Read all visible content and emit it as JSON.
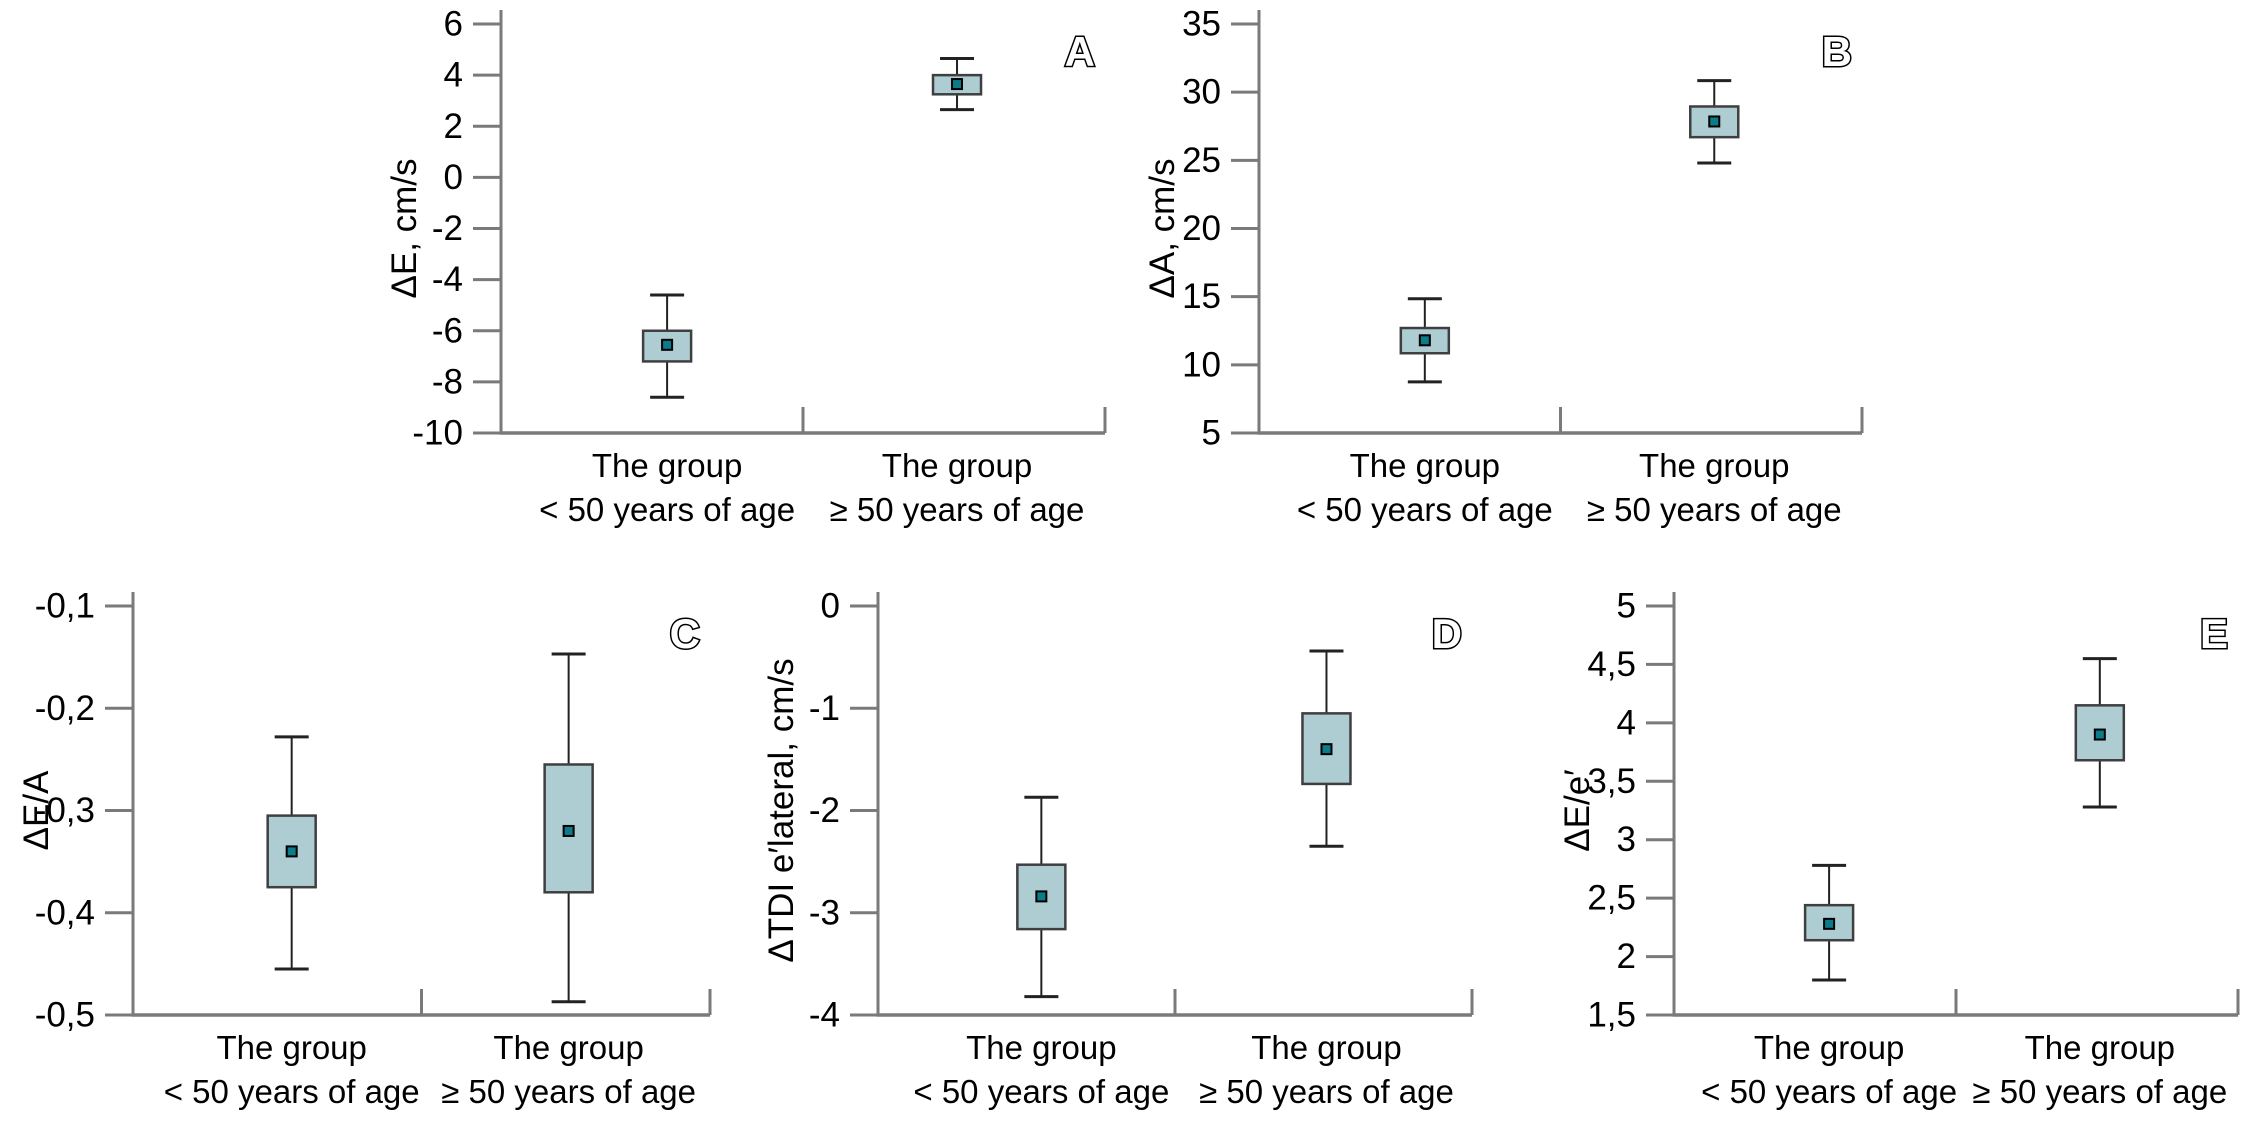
{
  "background": "#ffffff",
  "styles": {
    "box_fill": "#aecdd3",
    "box_border": "#3f3f3f",
    "whisker_color": "#222222",
    "marker_fill": "#0c7b8a",
    "marker_border": "#000000",
    "axis_color": "#7a7a7a",
    "text_color": "#000000"
  },
  "chart_data": [
    {
      "type": "box",
      "panel_label": "A",
      "ylabel": "ΔE, cm/s",
      "ylim": [
        -10,
        6
      ],
      "grid": false,
      "yticks": [
        {
          "v": 6,
          "label": "6"
        },
        {
          "v": 4,
          "label": "4"
        },
        {
          "v": 2,
          "label": "2"
        },
        {
          "v": 0,
          "label": "0"
        },
        {
          "v": -2,
          "label": "-2"
        },
        {
          "v": -4,
          "label": "-4"
        },
        {
          "v": -6,
          "label": "-6"
        },
        {
          "v": -8,
          "label": "-8"
        },
        {
          "v": -10,
          "label": "-10"
        }
      ],
      "categories": [
        {
          "line1": "The group",
          "line2": "< 50 years of age"
        },
        {
          "line1": "The group",
          "line2": "≥ 50 years of age"
        }
      ],
      "boxes": [
        {
          "whisker_low": -8.6,
          "q1": -7.2,
          "center": -6.55,
          "q3": -6.0,
          "whisker_high": -4.6
        },
        {
          "whisker_low": 2.65,
          "q1": 3.25,
          "center": 3.65,
          "q3": 4.0,
          "whisker_high": 4.65
        }
      ]
    },
    {
      "type": "box",
      "panel_label": "B",
      "ylabel": "ΔA, cm/s",
      "ylim": [
        5,
        35
      ],
      "grid": false,
      "yticks": [
        {
          "v": 35,
          "label": "35"
        },
        {
          "v": 30,
          "label": "30"
        },
        {
          "v": 25,
          "label": "25"
        },
        {
          "v": 20,
          "label": "20"
        },
        {
          "v": 15,
          "label": "15"
        },
        {
          "v": 10,
          "label": "10"
        },
        {
          "v": 5,
          "label": "5"
        }
      ],
      "categories": [
        {
          "line1": "The group",
          "line2": "< 50 years of age"
        },
        {
          "line1": "The group",
          "line2": "≥ 50 years of age"
        }
      ],
      "boxes": [
        {
          "whisker_low": 8.75,
          "q1": 10.85,
          "center": 11.8,
          "q3": 12.7,
          "whisker_high": 14.85
        },
        {
          "whisker_low": 24.8,
          "q1": 26.7,
          "center": 27.85,
          "q3": 28.95,
          "whisker_high": 30.85
        }
      ]
    },
    {
      "type": "box",
      "panel_label": "C",
      "ylabel": "ΔE/A",
      "ylim": [
        -0.5,
        -0.1
      ],
      "grid": false,
      "yticks": [
        {
          "v": -0.1,
          "label": "-0,1"
        },
        {
          "v": -0.2,
          "label": "-0,2"
        },
        {
          "v": -0.3,
          "label": "-0,3"
        },
        {
          "v": -0.4,
          "label": "-0,4"
        },
        {
          "v": -0.5,
          "label": "-0,5"
        }
      ],
      "categories": [
        {
          "line1": "The group",
          "line2": "< 50 years of age"
        },
        {
          "line1": "The group",
          "line2": "≥ 50 years of age"
        }
      ],
      "boxes": [
        {
          "whisker_low": -0.455,
          "q1": -0.375,
          "center": -0.34,
          "q3": -0.305,
          "whisker_high": -0.228
        },
        {
          "whisker_low": -0.487,
          "q1": -0.38,
          "center": -0.32,
          "q3": -0.255,
          "whisker_high": -0.147
        }
      ]
    },
    {
      "type": "box",
      "panel_label": "D",
      "ylabel": "ΔTDI e′lateral, cm/s",
      "ylim": [
        -4,
        0
      ],
      "grid": false,
      "yticks": [
        {
          "v": 0,
          "label": "0"
        },
        {
          "v": -1,
          "label": "-1"
        },
        {
          "v": -2,
          "label": "-2"
        },
        {
          "v": -3,
          "label": "-3"
        },
        {
          "v": -4,
          "label": "-4"
        }
      ],
      "categories": [
        {
          "line1": "The group",
          "line2": "< 50 years of age"
        },
        {
          "line1": "The group",
          "line2": "≥ 50 years of age"
        }
      ],
      "boxes": [
        {
          "whisker_low": -3.82,
          "q1": -3.16,
          "center": -2.84,
          "q3": -2.53,
          "whisker_high": -1.87
        },
        {
          "whisker_low": -2.35,
          "q1": -1.74,
          "center": -1.4,
          "q3": -1.05,
          "whisker_high": -0.44
        }
      ]
    },
    {
      "type": "box",
      "panel_label": "E",
      "ylabel": "ΔE/e′",
      "ylim": [
        1.5,
        5
      ],
      "grid": false,
      "yticks": [
        {
          "v": 5,
          "label": "5"
        },
        {
          "v": 4.5,
          "label": "4,5"
        },
        {
          "v": 4,
          "label": "4"
        },
        {
          "v": 3.5,
          "label": "3,5"
        },
        {
          "v": 3,
          "label": "3"
        },
        {
          "v": 2.5,
          "label": "2,5"
        },
        {
          "v": 2,
          "label": "2"
        },
        {
          "v": 1.5,
          "label": "1,5"
        }
      ],
      "categories": [
        {
          "line1": "The group",
          "line2": "< 50 years of age"
        },
        {
          "line1": "The group",
          "line2": "≥ 50 years of age"
        }
      ],
      "boxes": [
        {
          "whisker_low": 1.8,
          "q1": 2.14,
          "center": 2.28,
          "q3": 2.44,
          "whisker_high": 2.78
        },
        {
          "whisker_low": 3.28,
          "q1": 3.68,
          "center": 3.9,
          "q3": 4.15,
          "whisker_high": 4.55
        }
      ]
    }
  ]
}
